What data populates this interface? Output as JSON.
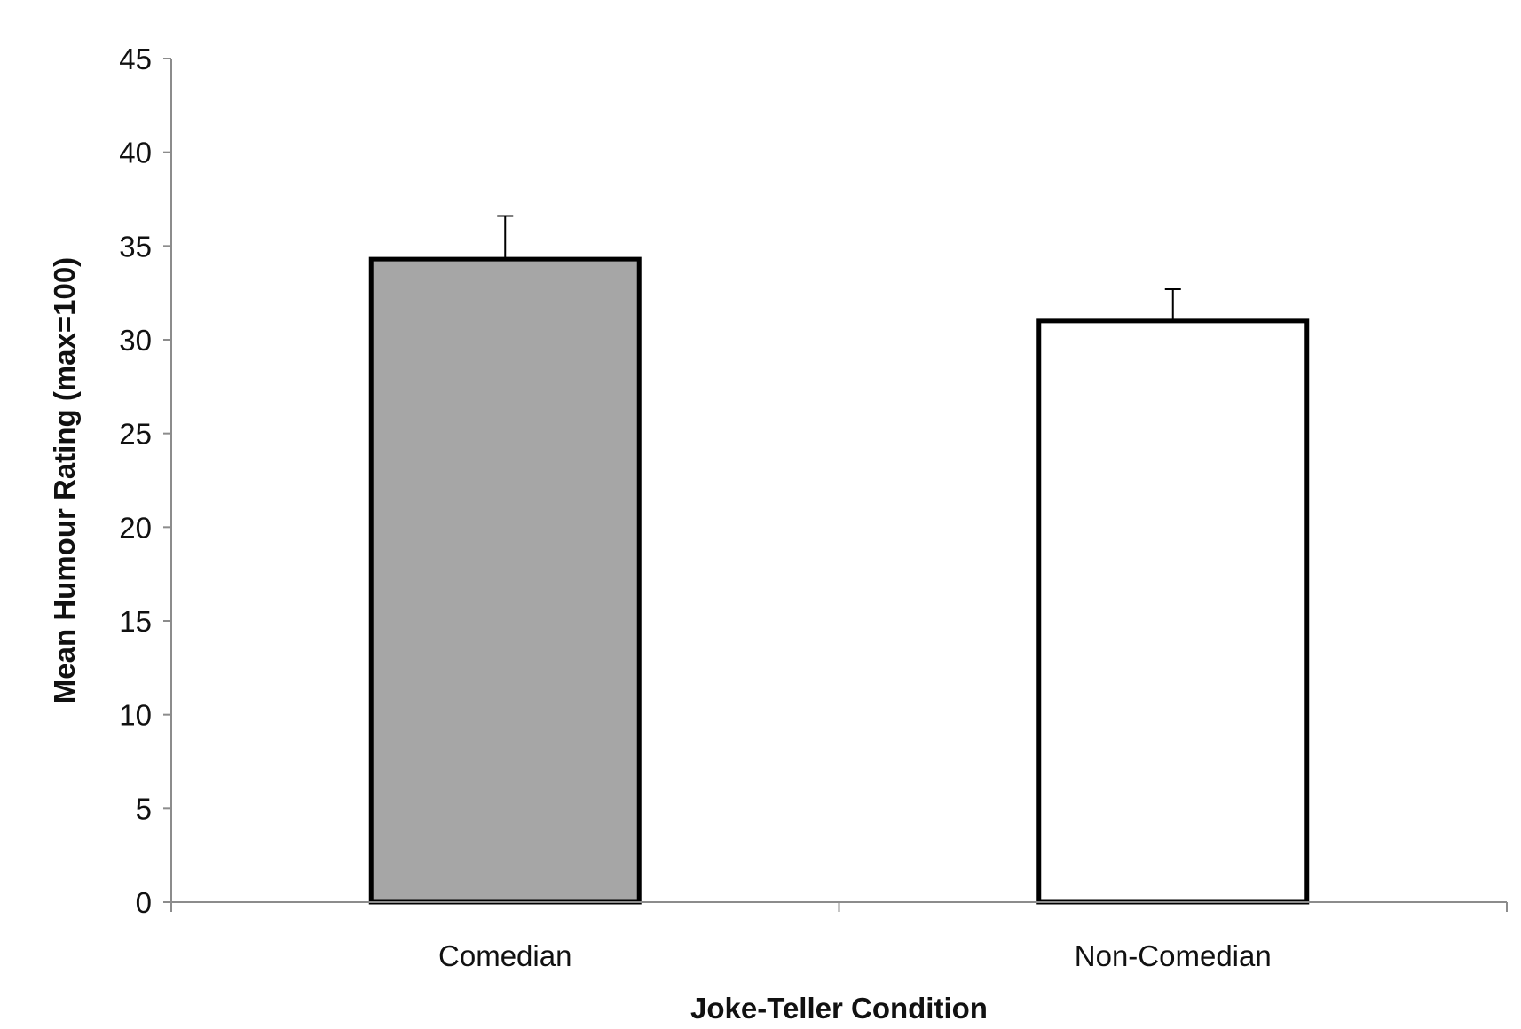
{
  "chart_data": {
    "type": "bar",
    "categories": [
      "Comedian",
      "Non-Comedian"
    ],
    "values": [
      34.3,
      31.0
    ],
    "error_bars": [
      2.3,
      1.7
    ],
    "bar_fill_colors": [
      "#a6a6a6",
      "#ffffff"
    ],
    "bar_stroke_color": "#000000",
    "axis_color": "#8c8c8c",
    "title": "",
    "xlabel": "Joke-Teller Condition",
    "ylabel": "Mean Humour Rating (max=100)",
    "ylim": [
      0,
      45
    ],
    "yticks": [
      "0",
      "5",
      "10",
      "15",
      "20",
      "25",
      "30",
      "35",
      "40",
      "45"
    ],
    "grid": false,
    "legend": "none"
  }
}
